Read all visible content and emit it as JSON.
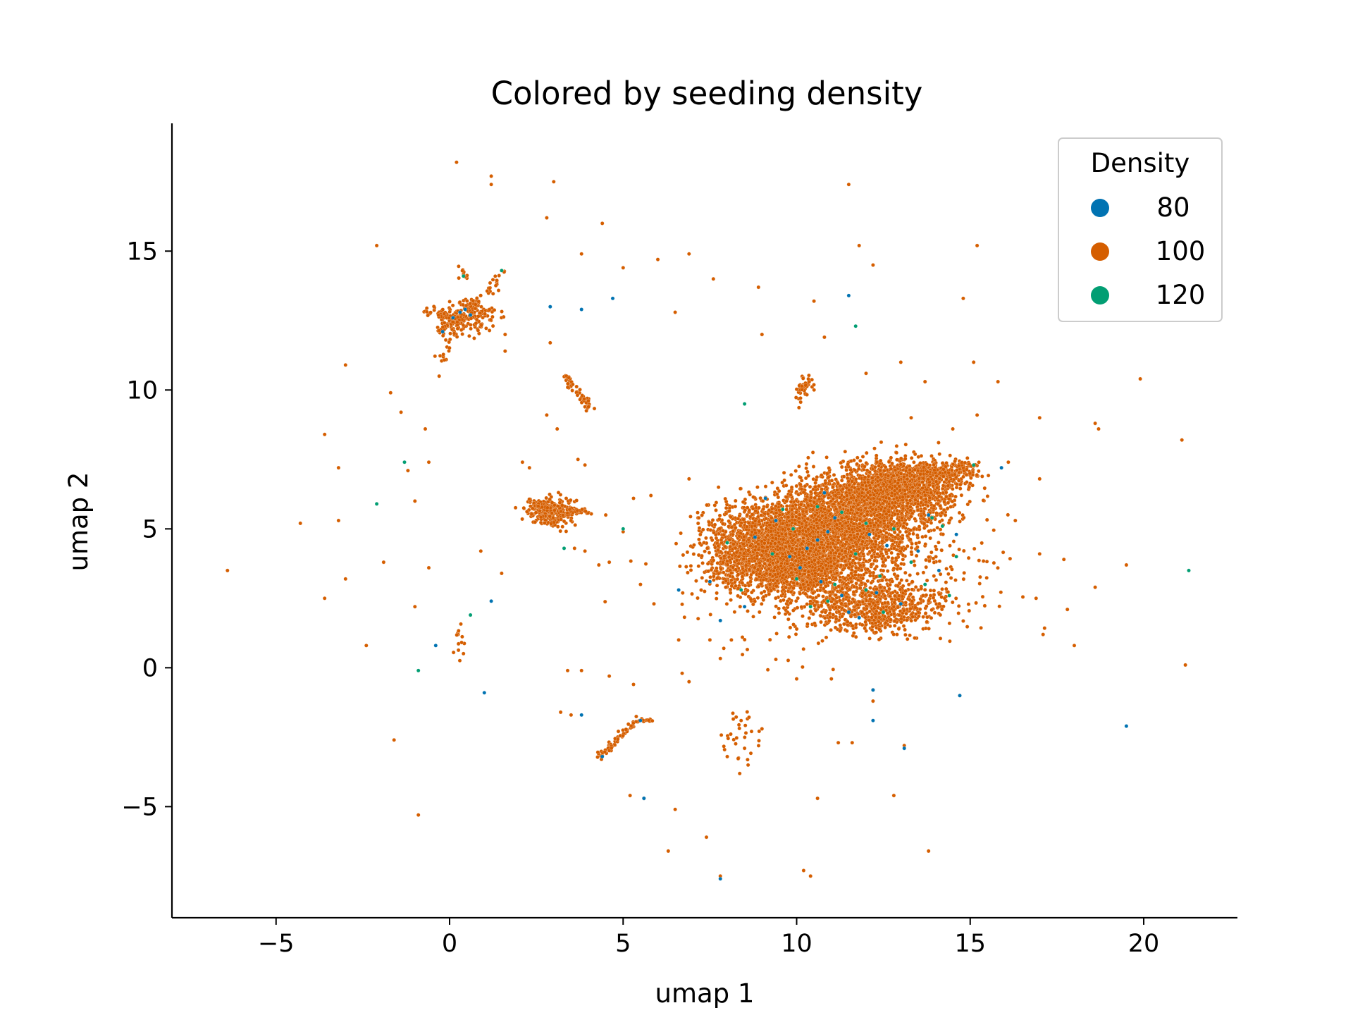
{
  "chart_data": {
    "type": "scatter",
    "title": "Colored by seeding density",
    "xlabel": "umap 1",
    "ylabel": "umap 2",
    "xlim": [
      -8,
      22.7
    ],
    "ylim": [
      -9,
      19.6
    ],
    "xticks": [
      -5,
      0,
      5,
      10,
      15,
      20
    ],
    "yticks": [
      -5,
      0,
      5,
      10,
      15
    ],
    "xtick_labels": [
      "−5",
      "0",
      "5",
      "10",
      "15",
      "20"
    ],
    "ytick_labels": [
      "−5",
      "0",
      "5",
      "10",
      "15"
    ],
    "grid": false,
    "legend": {
      "title": "Density",
      "position": "top-right"
    },
    "series": [
      {
        "name": "80",
        "color": "#0173b2",
        "points": [
          [
            0.1,
            12.6
          ],
          [
            0.3,
            12.8
          ],
          [
            0.45,
            12.9
          ],
          [
            -0.2,
            12.1
          ],
          [
            0.6,
            12.7
          ],
          [
            3.8,
            12.9
          ],
          [
            4.7,
            13.3
          ],
          [
            11.5,
            13.4
          ],
          [
            1.2,
            2.4
          ],
          [
            1.0,
            -0.9
          ],
          [
            -0.4,
            0.8
          ],
          [
            7.5,
            3.1
          ],
          [
            6.6,
            2.8
          ],
          [
            7.8,
            1.7
          ],
          [
            8.5,
            2.2
          ],
          [
            8.8,
            4.7
          ],
          [
            9.4,
            5.3
          ],
          [
            9.8,
            4.0
          ],
          [
            10.1,
            3.6
          ],
          [
            10.6,
            4.6
          ],
          [
            10.9,
            4.9
          ],
          [
            11.1,
            5.4
          ],
          [
            11.3,
            2.6
          ],
          [
            11.5,
            2.0
          ],
          [
            11.8,
            1.8
          ],
          [
            12.1,
            4.8
          ],
          [
            12.3,
            2.7
          ],
          [
            12.6,
            4.4
          ],
          [
            13.0,
            2.3
          ],
          [
            13.5,
            4.2
          ],
          [
            14.1,
            3.5
          ],
          [
            14.6,
            4.8
          ],
          [
            9.1,
            6.1
          ],
          [
            10.8,
            6.3
          ],
          [
            12.2,
            -0.8
          ],
          [
            12.2,
            -1.9
          ],
          [
            13.1,
            -2.9
          ],
          [
            15.9,
            7.2
          ],
          [
            14.7,
            -1.0
          ],
          [
            19.5,
            -2.1
          ],
          [
            7.8,
            -7.6
          ],
          [
            5.6,
            -4.7
          ],
          [
            4.4,
            -3.2
          ],
          [
            5.5,
            -1.9
          ],
          [
            3.8,
            -1.7
          ],
          [
            2.9,
            13.0
          ],
          [
            10.3,
            4.3
          ],
          [
            10.7,
            3.1
          ],
          [
            13.8,
            5.5
          ]
        ]
      },
      {
        "name": "120",
        "color": "#029e73",
        "points": [
          [
            -1.3,
            7.4
          ],
          [
            -2.1,
            5.9
          ],
          [
            3.3,
            4.3
          ],
          [
            0.6,
            1.9
          ],
          [
            -0.9,
            -0.1
          ],
          [
            8.5,
            9.5
          ],
          [
            5.0,
            5.0
          ],
          [
            11.7,
            12.3
          ],
          [
            0.4,
            14.1
          ],
          [
            1.5,
            14.3
          ],
          [
            9.3,
            4.1
          ],
          [
            9.9,
            5.0
          ],
          [
            10.4,
            2.2
          ],
          [
            10.9,
            2.4
          ],
          [
            11.3,
            5.6
          ],
          [
            11.7,
            4.1
          ],
          [
            12.0,
            5.2
          ],
          [
            12.4,
            3.3
          ],
          [
            12.8,
            5.0
          ],
          [
            13.3,
            3.8
          ],
          [
            13.7,
            3.0
          ],
          [
            14.2,
            5.1
          ],
          [
            14.6,
            4.0
          ],
          [
            8.0,
            4.5
          ],
          [
            8.4,
            2.8
          ],
          [
            10.6,
            5.8
          ],
          [
            11.1,
            3.0
          ],
          [
            12.5,
            2.0
          ],
          [
            13.9,
            5.4
          ],
          [
            15.1,
            7.3
          ],
          [
            21.3,
            3.5
          ],
          [
            12.0,
            2.8
          ],
          [
            10.0,
            3.2
          ],
          [
            14.4,
            2.6
          ],
          [
            9.6,
            5.7
          ]
        ]
      }
    ]
  }
}
